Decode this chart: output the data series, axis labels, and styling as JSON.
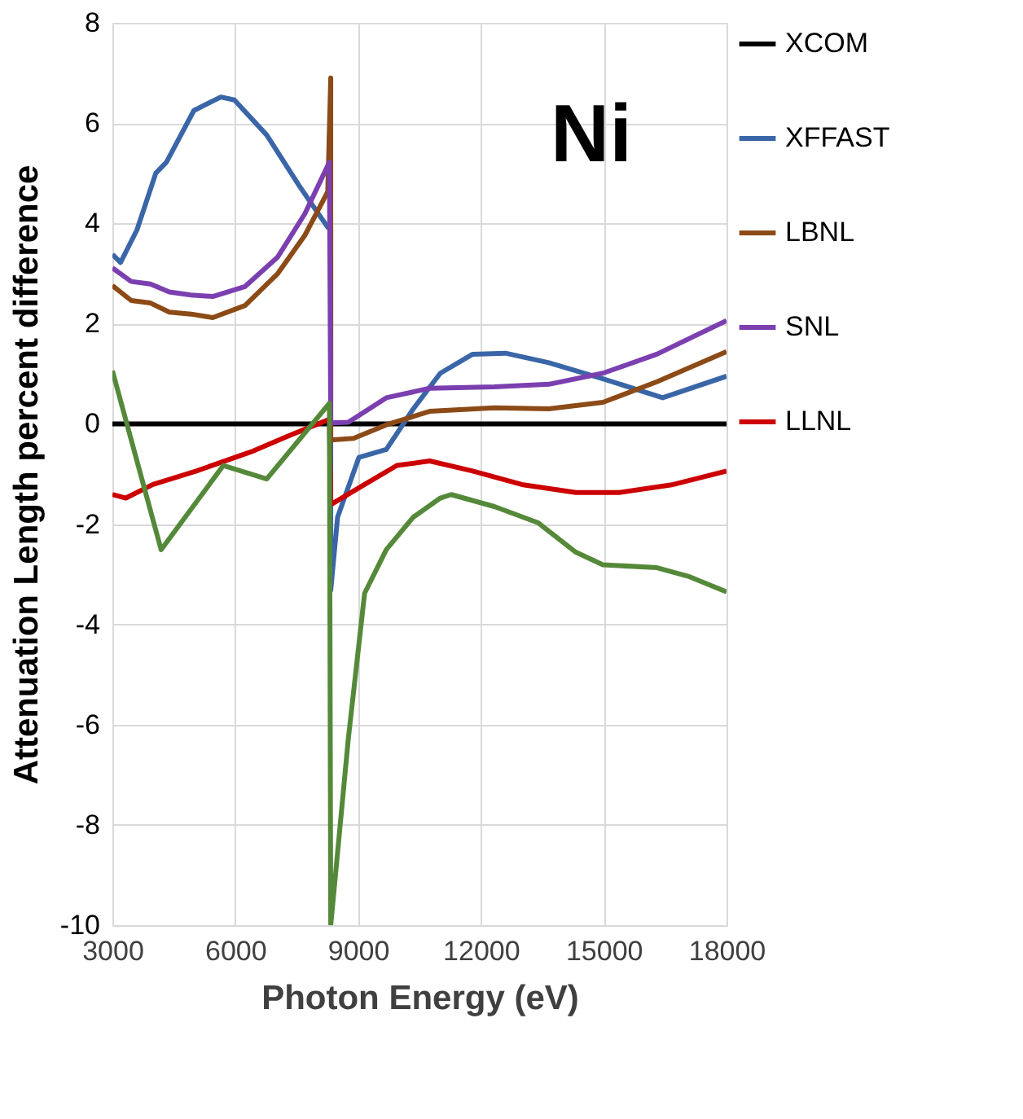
{
  "chart_data": {
    "type": "line",
    "xlabel": "Photon Energy (eV)",
    "ylabel": "Attenuation Length percent difference",
    "annotations": [
      "Ni"
    ],
    "xlim": [
      3000,
      18000
    ],
    "xticks": [
      3000,
      6000,
      9000,
      12000,
      15000,
      18000
    ],
    "ylim": [
      -10,
      8
    ],
    "yticks": [
      -10,
      -8,
      -6,
      -4,
      -2,
      0,
      2,
      4,
      6,
      8
    ],
    "grid": true,
    "legend": "right",
    "marker": "none",
    "line_style": "solid",
    "series": [
      {
        "name": "XCOM",
        "color": "#000000",
        "x": [
          3000,
          18000
        ],
        "values": [
          0,
          0
        ]
      },
      {
        "name": "XFFAST",
        "color": "#3a66a8",
        "x": [
          3000,
          3200,
          3600,
          4060,
          4320,
          4990,
          5650,
          5980,
          6770,
          7570,
          8260,
          8333,
          8333,
          8500,
          9020,
          9690,
          10350,
          11010,
          11800,
          12600,
          13660,
          14980,
          16440,
          18000
        ],
        "values": [
          3.38,
          3.22,
          3.87,
          5.0,
          5.22,
          6.25,
          6.52,
          6.46,
          5.76,
          4.74,
          3.92,
          3.9,
          -3.32,
          -1.86,
          -0.67,
          -0.51,
          0.3,
          1.01,
          1.39,
          1.41,
          1.22,
          0.9,
          0.52,
          0.95
        ]
      },
      {
        "name": "LBNL",
        "color": "#8c4a17",
        "x": [
          3000,
          3460,
          3930,
          4390,
          4920,
          5450,
          6240,
          7040,
          7700,
          8260,
          8333,
          8333,
          8890,
          9690,
          10750,
          12330,
          13660,
          14980,
          16300,
          18000
        ],
        "values": [
          2.76,
          2.46,
          2.41,
          2.23,
          2.19,
          2.12,
          2.36,
          3.0,
          3.76,
          4.63,
          6.9,
          -0.32,
          -0.29,
          -0.02,
          0.25,
          0.32,
          0.3,
          0.43,
          0.84,
          1.44
        ]
      },
      {
        "name": "SNL",
        "color": "#7b3fb0",
        "x": [
          3000,
          3460,
          3930,
          4390,
          4920,
          5450,
          6240,
          7040,
          7700,
          8300,
          8333,
          8760,
          9690,
          10750,
          12330,
          13660,
          14980,
          16300,
          18000
        ],
        "values": [
          3.11,
          2.84,
          2.79,
          2.63,
          2.57,
          2.54,
          2.74,
          3.33,
          4.19,
          5.22,
          0.02,
          0.03,
          0.52,
          0.71,
          0.74,
          0.79,
          1.01,
          1.39,
          2.06
        ]
      },
      {
        "name": "LLNL",
        "color": "#cc0000",
        "x": [
          3000,
          3330,
          3990,
          5050,
          6380,
          7300,
          8300,
          8333,
          9160,
          9950,
          10750,
          11800,
          13000,
          14320,
          15380,
          16700,
          18000
        ],
        "values": [
          -1.41,
          -1.48,
          -1.21,
          -0.94,
          -0.56,
          -0.24,
          0.09,
          -1.61,
          -1.21,
          -0.83,
          -0.74,
          -0.94,
          -1.21,
          -1.37,
          -1.37,
          -1.21,
          -0.94
        ]
      },
      {
        "color": "#55893a",
        "x": [
          3000,
          4190,
          5710,
          6770,
          8300,
          8333,
          8760,
          9160,
          9690,
          10350,
          11010,
          11275,
          12330,
          13390,
          14320,
          14980,
          16300,
          17100,
          18000
        ],
        "values": [
          1.06,
          -2.51,
          -0.83,
          -1.1,
          0.41,
          -10,
          -6.3,
          -3.38,
          -2.51,
          -1.86,
          -1.48,
          -1.41,
          -1.65,
          -1.97,
          -2.56,
          -2.81,
          -2.87,
          -3.05,
          -3.35
        ]
      }
    ]
  }
}
